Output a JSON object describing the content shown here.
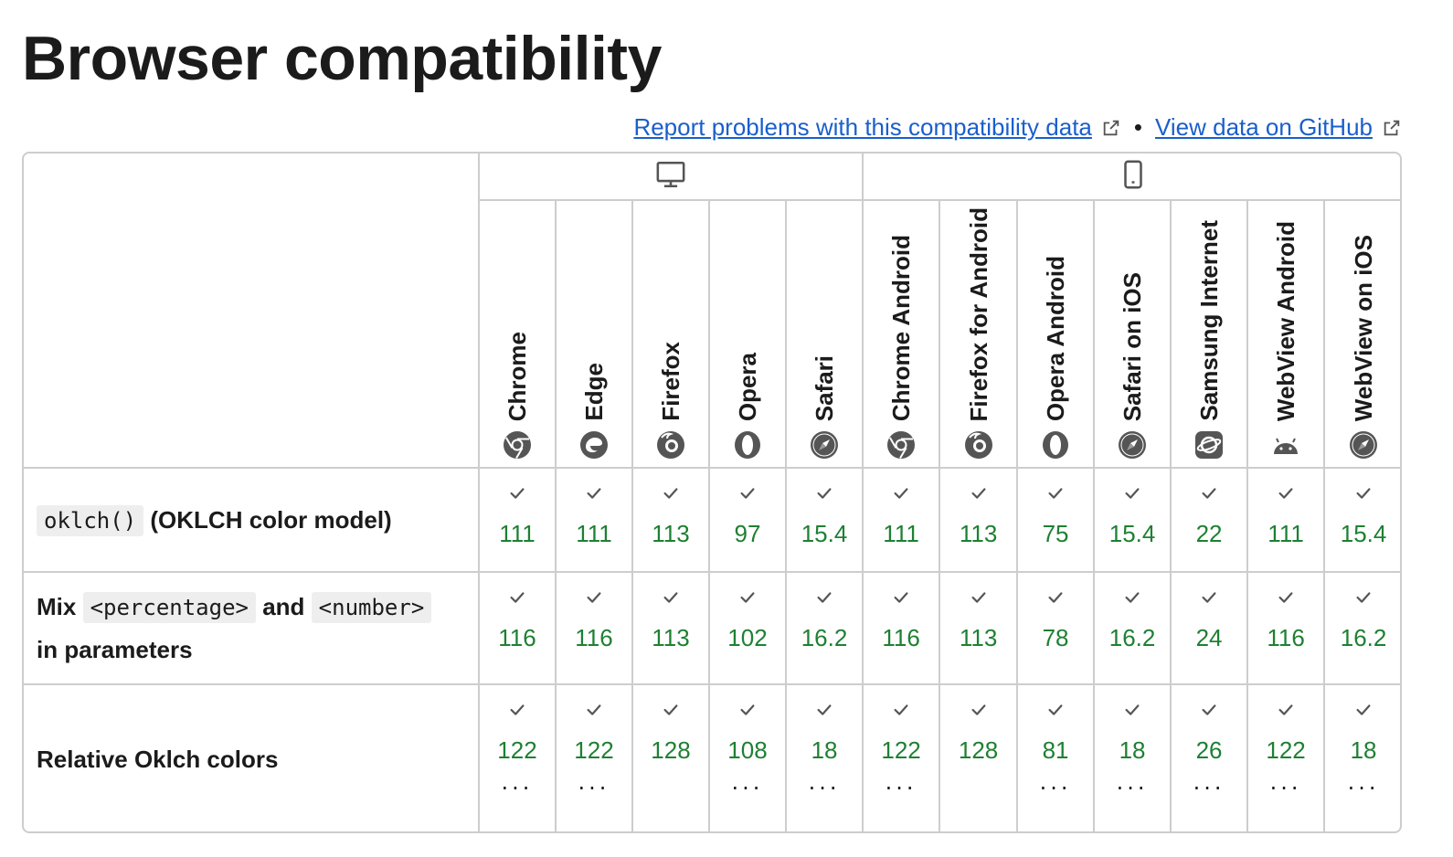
{
  "title": "Browser compatibility",
  "links": {
    "report": "Report problems with this compatibility data",
    "bullet": "•",
    "github": "View data on GitHub"
  },
  "platforms": [
    {
      "name": "desktop",
      "icon": "desktop-icon"
    },
    {
      "name": "mobile",
      "icon": "mobile-icon"
    }
  ],
  "browsers": [
    {
      "label": "Chrome",
      "icon": "chrome-icon"
    },
    {
      "label": "Edge",
      "icon": "edge-icon"
    },
    {
      "label": "Firefox",
      "icon": "firefox-icon"
    },
    {
      "label": "Opera",
      "icon": "opera-icon"
    },
    {
      "label": "Safari",
      "icon": "safari-icon"
    },
    {
      "label": "Chrome Android",
      "icon": "chrome-icon"
    },
    {
      "label": "Firefox for Android",
      "icon": "firefox-icon"
    },
    {
      "label": "Opera Android",
      "icon": "opera-icon"
    },
    {
      "label": "Safari on iOS",
      "icon": "safari-icon"
    },
    {
      "label": "Samsung Internet",
      "icon": "samsung-internet-icon"
    },
    {
      "label": "WebView Android",
      "icon": "android-icon"
    },
    {
      "label": "WebView on iOS",
      "icon": "safari-icon"
    }
  ],
  "features": [
    {
      "code1": "oklch()",
      "text1": "(OKLCH color model)",
      "versions": [
        "111",
        "111",
        "113",
        "97",
        "15.4",
        "111",
        "113",
        "75",
        "15.4",
        "22",
        "111",
        "15.4"
      ],
      "more": [
        false,
        false,
        false,
        false,
        false,
        false,
        false,
        false,
        false,
        false,
        false,
        false
      ]
    },
    {
      "text0": "Mix",
      "code1": "<percentage>",
      "text1": "and",
      "code2": "<number>",
      "text2": "in parameters",
      "versions": [
        "116",
        "116",
        "113",
        "102",
        "16.2",
        "116",
        "113",
        "78",
        "16.2",
        "24",
        "116",
        "16.2"
      ],
      "more": [
        false,
        false,
        false,
        false,
        false,
        false,
        false,
        false,
        false,
        false,
        false,
        false
      ]
    },
    {
      "text0": "Relative Oklch colors",
      "versions": [
        "122",
        "122",
        "128",
        "108",
        "18",
        "122",
        "128",
        "81",
        "18",
        "26",
        "122",
        "18"
      ],
      "more": [
        true,
        true,
        false,
        true,
        true,
        true,
        false,
        true,
        true,
        true,
        true,
        true
      ]
    }
  ],
  "more_glyph": "...",
  "colors": {
    "link": "#1a5fcc",
    "supported": "#1e8032",
    "border": "#cdcdcd",
    "code_bg": "#eeeeee"
  }
}
